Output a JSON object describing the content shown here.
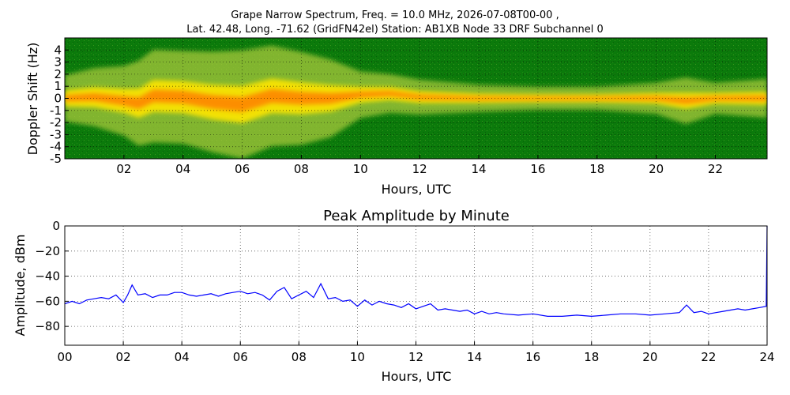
{
  "figure": {
    "title_line1": "Grape Narrow Spectrum, Freq. = 10.0 MHz, 2026-07-08T00-00 ,",
    "title_line2": "Lat.  42.48, Long. -71.62 (GridFN42el) Station: AB1XB Node 33 DRF Subchannel 0"
  },
  "colors": {
    "spectrogram_background": "#0b7a0b",
    "spectrogram_mid": "#a9c93a",
    "spectrogram_high": "#ffe600",
    "spectrogram_peak": "#ff7a00",
    "line_series": "#0000ff",
    "grid": "#555555"
  },
  "chart_data": [
    {
      "type": "heatmap",
      "title": "",
      "xlabel": "Hours, UTC",
      "ylabel": "Doppler Shift (Hz)",
      "xlim": [
        0,
        23.75
      ],
      "ylim": [
        -5,
        5
      ],
      "x_ticks": [
        2,
        4,
        6,
        8,
        10,
        12,
        14,
        16,
        18,
        20,
        22
      ],
      "x_tick_labels": [
        "02",
        "04",
        "06",
        "08",
        "10",
        "12",
        "14",
        "16",
        "18",
        "20",
        "22"
      ],
      "y_ticks": [
        4,
        3,
        2,
        1,
        0,
        -1,
        -2,
        -3,
        -4,
        -5
      ],
      "y_tick_labels": [
        "4",
        "3",
        "2",
        "1",
        "0",
        "-1",
        "-2",
        "-3",
        "-4",
        "-5"
      ],
      "grid": true,
      "ridge": {
        "hours": [
          0,
          1,
          2,
          2.5,
          3,
          4,
          5,
          6,
          7,
          8,
          9,
          10,
          11,
          12,
          14,
          16,
          18,
          20,
          21,
          22,
          23.75
        ],
        "doppler_hz": [
          0,
          0.1,
          -0.2,
          -0.4,
          0.2,
          0.1,
          -0.3,
          -0.5,
          0.2,
          0,
          0,
          0.3,
          0.4,
          0.1,
          0,
          0,
          0,
          0,
          -0.2,
          0,
          0
        ],
        "width_hz": [
          1.2,
          1.5,
          1.8,
          2.2,
          2.4,
          2.4,
          2.6,
          2.8,
          2.6,
          2.4,
          2,
          1.2,
          1,
          0.9,
          0.7,
          0.6,
          0.6,
          0.8,
          1.2,
          0.8,
          1
        ]
      }
    },
    {
      "type": "line",
      "title": "Peak Amplitude by Minute",
      "xlabel": "Hours, UTC",
      "ylabel": "Amplitude, dBm",
      "xlim": [
        0,
        24
      ],
      "ylim": [
        -95,
        0
      ],
      "x_ticks": [
        0,
        2,
        4,
        6,
        8,
        10,
        12,
        14,
        16,
        18,
        20,
        22,
        24
      ],
      "x_tick_labels": [
        "00",
        "02",
        "04",
        "06",
        "08",
        "10",
        "12",
        "14",
        "16",
        "18",
        "20",
        "22",
        "24"
      ],
      "y_ticks": [
        0,
        -20,
        -40,
        -60,
        -80
      ],
      "y_tick_labels": [
        "0",
        "−20",
        "−40",
        "−60",
        "−80"
      ],
      "grid": true,
      "series": [
        {
          "x": [
            0,
            0.25,
            0.5,
            0.75,
            1,
            1.25,
            1.5,
            1.75,
            2,
            2.15,
            2.3,
            2.5,
            2.75,
            3,
            3.25,
            3.5,
            3.75,
            4,
            4.25,
            4.5,
            4.75,
            5,
            5.25,
            5.5,
            5.75,
            6,
            6.25,
            6.5,
            6.75,
            7,
            7.25,
            7.5,
            7.75,
            8,
            8.25,
            8.5,
            8.75,
            9,
            9.25,
            9.5,
            9.75,
            10,
            10.25,
            10.5,
            10.75,
            11,
            11.25,
            11.5,
            11.75,
            12,
            12.25,
            12.5,
            12.75,
            13,
            13.25,
            13.5,
            13.75,
            14,
            14.25,
            14.5,
            14.75,
            15,
            15.5,
            16,
            16.5,
            17,
            17.5,
            18,
            18.5,
            19,
            19.5,
            20,
            20.5,
            21,
            21.25,
            21.5,
            21.75,
            22,
            22.25,
            22.5,
            22.75,
            23,
            23.25,
            23.5,
            23.75,
            23.97,
            24
          ],
          "y": [
            -62,
            -60,
            -62,
            -59,
            -58,
            -57,
            -58,
            -55,
            -61,
            -55,
            -47,
            -55,
            -54,
            -57,
            -55,
            -55,
            -53,
            -53,
            -55,
            -56,
            -55,
            -54,
            -56,
            -54,
            -53,
            -52,
            -54,
            -53,
            -55,
            -59,
            -52,
            -49,
            -58,
            -55,
            -52,
            -57,
            -46,
            -58,
            -57,
            -60,
            -59,
            -64,
            -59,
            -63,
            -60,
            -62,
            -63,
            -65,
            -62,
            -66,
            -64,
            -62,
            -67,
            -66,
            -67,
            -68,
            -67,
            -70,
            -68,
            -70,
            -69,
            -70,
            -71,
            -70,
            -72,
            -72,
            -71,
            -72,
            -71,
            -70,
            -70,
            -71,
            -70,
            -69,
            -63,
            -69,
            -68,
            -70,
            -69,
            -68,
            -67,
            -66,
            -67,
            -66,
            -65,
            -64,
            0
          ]
        }
      ]
    }
  ]
}
